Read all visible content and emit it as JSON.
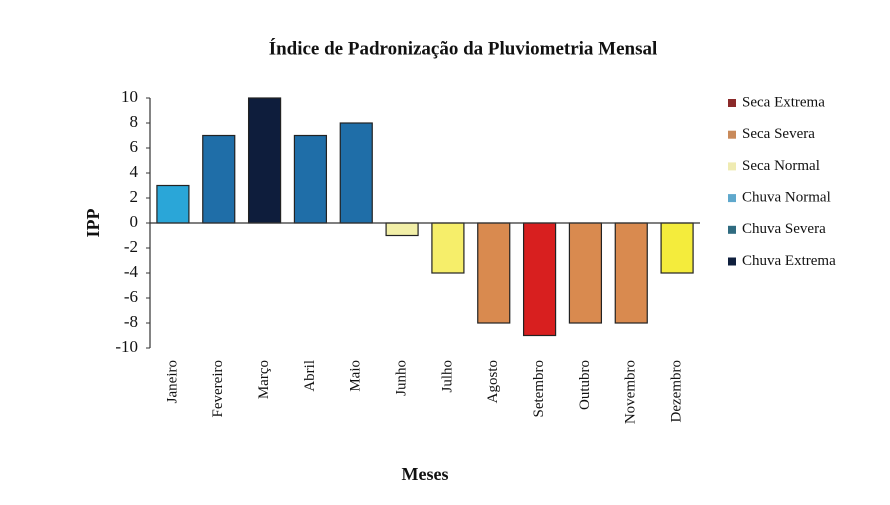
{
  "chart_data": {
    "type": "bar",
    "title": "Índice de Padronização da Pluviometria Mensal",
    "x_label": "Meses",
    "y_label": "IPP",
    "categories": [
      "Janeiro",
      "Fevereiro",
      "Março",
      "Abril",
      "Maio",
      "Junho",
      "Julho",
      "Agosto",
      "Setembro",
      "Outubro",
      "Novembro",
      "Dezembro"
    ],
    "values": [
      3,
      7,
      10,
      7,
      8,
      -1,
      -4,
      -8,
      -9,
      -8,
      -8,
      -4
    ],
    "colors": [
      "#2aa6d8",
      "#1f6ea8",
      "#0e1d3c",
      "#1f6ea8",
      "#1f6ea8",
      "#f2efa8",
      "#f6ee6a",
      "#d98a4f",
      "#d81f1f",
      "#d98a4f",
      "#d98a4f",
      "#f4ec3c"
    ],
    "ylim": [
      -10,
      10
    ],
    "yticks": [
      -10,
      -8,
      -6,
      -4,
      -2,
      0,
      2,
      4,
      6,
      8,
      10
    ],
    "legend": [
      {
        "name": "Seca Extrema",
        "color": "#8b2a2a"
      },
      {
        "name": "Seca Severa",
        "color": "#c98a5a"
      },
      {
        "name": "Seca Normal",
        "color": "#efebb2"
      },
      {
        "name": "Chuva Normal",
        "color": "#5fa8cc"
      },
      {
        "name": "Chuva Severa",
        "color": "#2f6b80"
      },
      {
        "name": "Chuva Extrema",
        "color": "#0f1f3d"
      }
    ]
  }
}
